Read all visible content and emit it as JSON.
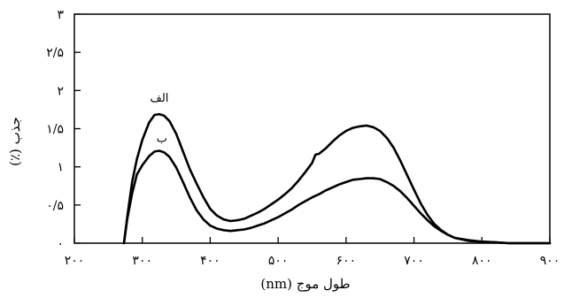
{
  "chart_data": {
    "type": "line",
    "xlabel": "طول موج (nm)",
    "ylabel": "جذب (٪)",
    "xlim": [
      200,
      900
    ],
    "ylim": [
      0,
      3
    ],
    "x_ticks": [
      200,
      300,
      400,
      500,
      600,
      700,
      800,
      900
    ],
    "x_tick_labels": [
      "۲۰۰",
      "۳۰۰",
      "۴۰۰",
      "۵۰۰",
      "۶۰۰",
      "۷۰۰",
      "۸۰۰",
      "۹۰۰"
    ],
    "y_ticks": [
      0,
      0.5,
      1,
      1.5,
      2,
      2.5,
      3
    ],
    "y_tick_labels": [
      "۰",
      "۰/۵",
      "۱",
      "۱/۵",
      "۲",
      "۲/۵",
      "۳"
    ],
    "grid": false,
    "legend": "none",
    "line_color": "#000000",
    "series": [
      {
        "name": "الف",
        "x": [
          273,
          278,
          285,
          292,
          300,
          310,
          318,
          325,
          332,
          340,
          350,
          360,
          370,
          380,
          390,
          400,
          410,
          420,
          430,
          440,
          450,
          460,
          470,
          480,
          490,
          500,
          510,
          520,
          530,
          540,
          550,
          555,
          560,
          570,
          580,
          590,
          600,
          610,
          620,
          630,
          640,
          650,
          660,
          670,
          680,
          690,
          700,
          710,
          720,
          730,
          740,
          750,
          760,
          780,
          800,
          820,
          840,
          860,
          880,
          900
        ],
        "y": [
          0,
          0.35,
          0.8,
          1.1,
          1.35,
          1.58,
          1.68,
          1.69,
          1.67,
          1.6,
          1.43,
          1.2,
          0.97,
          0.78,
          0.6,
          0.45,
          0.36,
          0.31,
          0.29,
          0.3,
          0.32,
          0.36,
          0.4,
          0.45,
          0.51,
          0.57,
          0.64,
          0.72,
          0.82,
          0.93,
          1.05,
          1.16,
          1.17,
          1.24,
          1.33,
          1.41,
          1.47,
          1.51,
          1.53,
          1.54,
          1.52,
          1.47,
          1.38,
          1.25,
          1.08,
          0.89,
          0.7,
          0.52,
          0.37,
          0.25,
          0.17,
          0.11,
          0.07,
          0.03,
          0.02,
          0.01,
          0,
          0,
          0,
          0
        ]
      },
      {
        "name": "ب",
        "x": [
          273,
          278,
          285,
          292,
          300,
          310,
          318,
          325,
          332,
          340,
          350,
          360,
          370,
          380,
          390,
          400,
          410,
          420,
          430,
          440,
          450,
          460,
          470,
          480,
          490,
          500,
          510,
          520,
          530,
          540,
          550,
          560,
          570,
          580,
          590,
          600,
          610,
          620,
          630,
          640,
          650,
          660,
          670,
          680,
          690,
          700,
          710,
          720,
          730,
          740,
          750,
          760,
          780,
          800,
          820,
          840,
          860,
          880,
          900
        ],
        "y": [
          0,
          0.32,
          0.65,
          0.9,
          1.02,
          1.14,
          1.2,
          1.21,
          1.19,
          1.13,
          0.99,
          0.8,
          0.6,
          0.43,
          0.31,
          0.23,
          0.19,
          0.17,
          0.16,
          0.17,
          0.18,
          0.2,
          0.23,
          0.26,
          0.3,
          0.34,
          0.39,
          0.44,
          0.5,
          0.55,
          0.6,
          0.64,
          0.69,
          0.73,
          0.77,
          0.8,
          0.83,
          0.84,
          0.85,
          0.85,
          0.84,
          0.8,
          0.75,
          0.68,
          0.59,
          0.49,
          0.39,
          0.3,
          0.22,
          0.16,
          0.11,
          0.07,
          0.04,
          0.02,
          0.01,
          0,
          0,
          0,
          0
        ]
      }
    ]
  }
}
